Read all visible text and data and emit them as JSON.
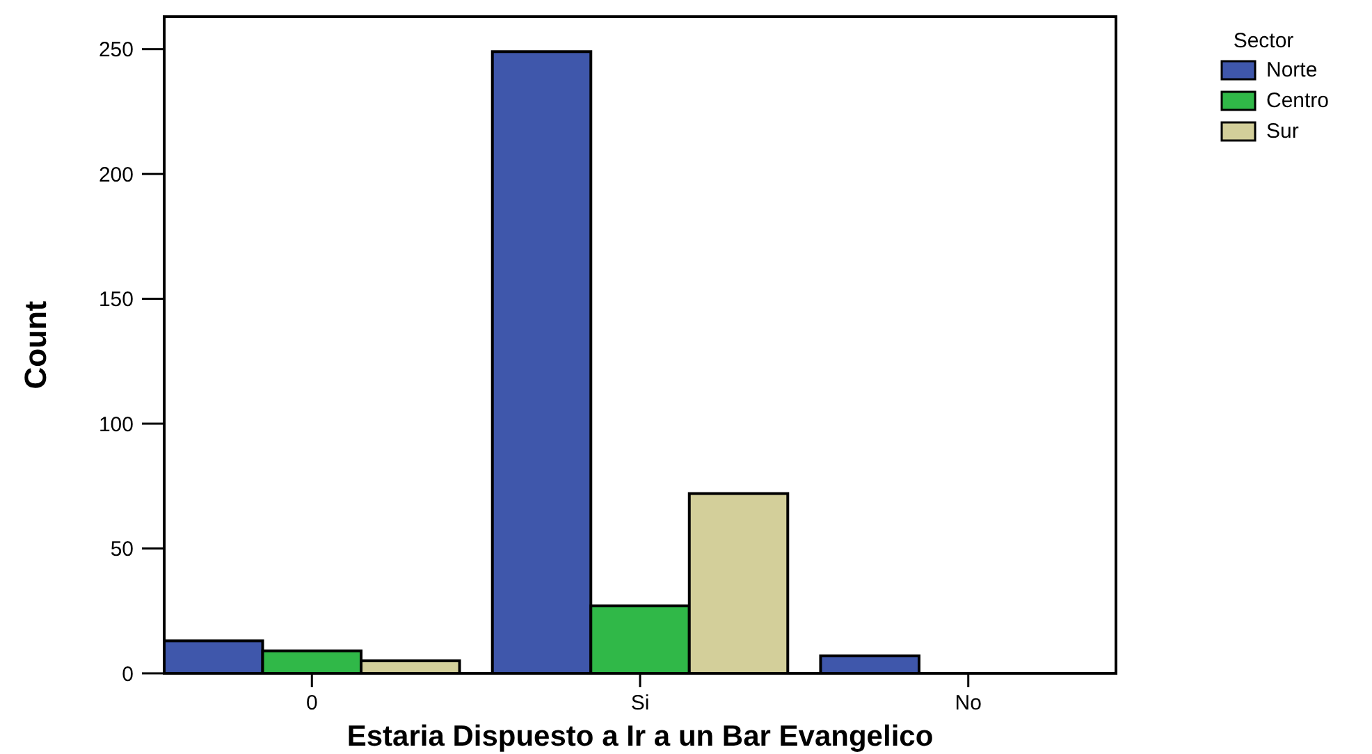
{
  "chart_data": {
    "type": "bar",
    "xlabel": "Estaria Dispuesto a Ir a un Bar Evangelico",
    "ylabel": "Count",
    "legend_title": "Sector",
    "categories": [
      "0",
      "Si",
      "No"
    ],
    "series": [
      {
        "name": "Norte",
        "color": "#3f57ab",
        "values": [
          13,
          249,
          7
        ]
      },
      {
        "name": "Centro",
        "color": "#30b848",
        "values": [
          9,
          27,
          0
        ]
      },
      {
        "name": "Sur",
        "color": "#d3cf9a",
        "values": [
          5,
          72,
          0
        ]
      }
    ],
    "ylim": [
      0,
      263
    ],
    "yticks": [
      0,
      50,
      100,
      150,
      200,
      250
    ],
    "grid": false,
    "legend": "right"
  }
}
